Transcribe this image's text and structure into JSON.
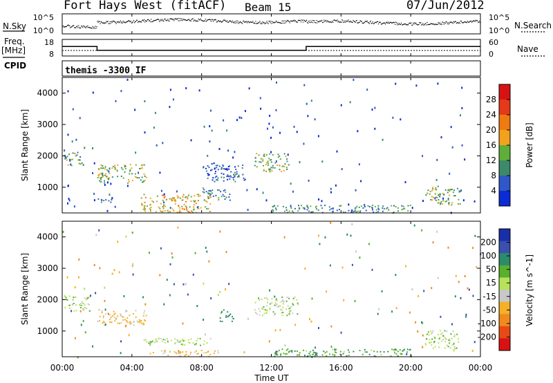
{
  "header": {
    "station": "Fort Hays West (fitACF)",
    "beam": "Beam 15",
    "date": "07/Jun/2012"
  },
  "left_labels": {
    "nsky": "N.Sky",
    "freq": "Freq.",
    "freq_unit": "[MHz]",
    "cpid": "CPID"
  },
  "right_labels": {
    "nsearch": "N.Search",
    "nave": "Nave"
  },
  "cpid_text": "themis -3300 IF",
  "colors": {
    "power": [
      "#0b2bd6",
      "#2f57c9",
      "#3c8a6a",
      "#5fae3a",
      "#f2a21d",
      "#f07a12",
      "#e43a1a",
      "#d81212"
    ],
    "velocity": [
      "#d81212",
      "#e84a17",
      "#f08a1e",
      "#f5b026",
      "#c8c8c8",
      "#b5e25a",
      "#58b02d",
      "#2c8b6a",
      "#3a4fae",
      "#1a2ea8"
    ]
  },
  "chart_data": [
    {
      "type": "line",
      "panel": "noise",
      "ylabel_left": "N.Sky",
      "ylabel_right": "N.Search",
      "yticks_left": [
        "10^5",
        "10^0"
      ],
      "yticks_right": [
        "10^5",
        "10^0"
      ],
      "xlim": [
        0,
        24
      ]
    },
    {
      "type": "line",
      "panel": "frequency",
      "ylabel_left": "Freq. [MHz]",
      "ylabel_right": "Nave",
      "yticks_left": [
        18,
        8
      ],
      "yticks_right": [
        60,
        0
      ],
      "series": [
        {
          "name": "Freq.",
          "x": [
            0,
            2.0,
            2.0,
            14.0,
            14.0,
            24
          ],
          "y": [
            16.6,
            16.6,
            13.1,
            13.1,
            16.6,
            16.6
          ]
        }
      ],
      "xlim": [
        0,
        24
      ]
    },
    {
      "type": "heatmap",
      "panel": "power",
      "ylabel": "Slant Range [km]",
      "yticks": [
        1000,
        2000,
        3000,
        4000
      ],
      "ylim": [
        180,
        4500
      ],
      "xlim": [
        0,
        24
      ],
      "colorbar_label": "Power [dB]",
      "colorbar_ticks": [
        4,
        8,
        12,
        16,
        20,
        24,
        28
      ],
      "colorbar_range": [
        0,
        32
      ],
      "regions": [
        {
          "x": [
            0.1,
            1.2
          ],
          "r": [
            1650,
            2150
          ],
          "level": 12
        },
        {
          "x": [
            2.0,
            4.8
          ],
          "r": [
            1150,
            1750
          ],
          "level": 14
        },
        {
          "x": [
            2.0,
            2.8
          ],
          "r": [
            500,
            700
          ],
          "level": 8
        },
        {
          "x": [
            4.5,
            8.5
          ],
          "r": [
            200,
            800
          ],
          "level": 18
        },
        {
          "x": [
            8.0,
            9.6
          ],
          "r": [
            600,
            1000
          ],
          "level": 9
        },
        {
          "x": [
            8.2,
            10.5
          ],
          "r": [
            1200,
            1800
          ],
          "level": 6
        },
        {
          "x": [
            11.0,
            13.0
          ],
          "r": [
            1500,
            2100
          ],
          "level": 13
        },
        {
          "x": [
            12.0,
            20.0
          ],
          "r": [
            200,
            450
          ],
          "level": 10
        },
        {
          "x": [
            20.8,
            22.8
          ],
          "r": [
            450,
            1050
          ],
          "level": 13
        }
      ]
    },
    {
      "type": "heatmap",
      "panel": "velocity",
      "ylabel": "Slant Range [km]",
      "yticks": [
        1000,
        2000,
        3000,
        4000
      ],
      "ylim": [
        180,
        4500
      ],
      "xlim": [
        0,
        24
      ],
      "colorbar_label": "Velocity [m s^-1]",
      "colorbar_ticks": [
        200,
        100,
        50,
        15,
        -15,
        -50,
        -100,
        -200
      ],
      "regions": [
        {
          "x": [
            0.1,
            1.6
          ],
          "r": [
            1650,
            2150
          ],
          "v": 0
        },
        {
          "x": [
            2.0,
            4.8
          ],
          "r": [
            1200,
            1700
          ],
          "v": -60
        },
        {
          "x": [
            4.5,
            8.5
          ],
          "r": [
            550,
            800
          ],
          "v": 0
        },
        {
          "x": [
            5.0,
            9.0
          ],
          "r": [
            200,
            400
          ],
          "v": -70
        },
        {
          "x": [
            9.0,
            9.8
          ],
          "r": [
            1300,
            1700
          ],
          "v": 60
        },
        {
          "x": [
            11.0,
            13.5
          ],
          "r": [
            1500,
            2100
          ],
          "v": 0
        },
        {
          "x": [
            12.0,
            20.0
          ],
          "r": [
            200,
            450
          ],
          "v": 40
        },
        {
          "x": [
            20.8,
            22.8
          ],
          "r": [
            450,
            1050
          ],
          "v": 0
        }
      ]
    }
  ],
  "x_axis": {
    "ticks": [
      "00:00",
      "04:00",
      "08:00",
      "12:00",
      "16:00",
      "20:00",
      "00:00"
    ],
    "label": "Time UT"
  }
}
